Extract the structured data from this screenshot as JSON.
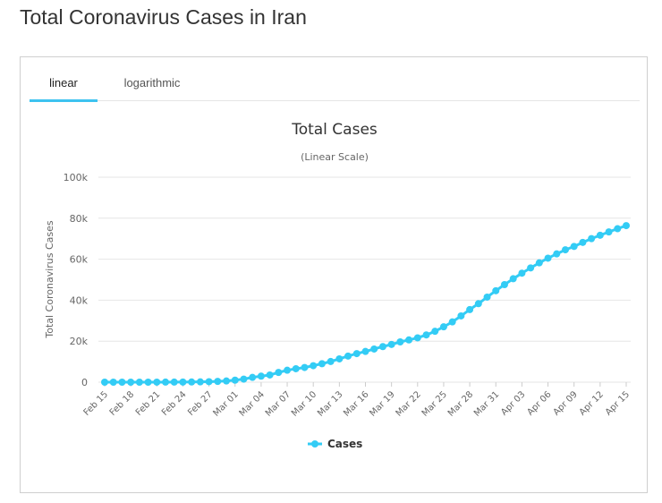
{
  "page": {
    "title": "Total Coronavirus Cases in Iran"
  },
  "tabs": [
    {
      "label": "linear",
      "active": true
    },
    {
      "label": "logarithmic",
      "active": false
    }
  ],
  "colors": {
    "series": "#33ccf5",
    "tab_underline": "#3dc3f0",
    "grid": "#e6e6e6"
  },
  "chart_data": {
    "type": "line",
    "title": "Total Cases",
    "subtitle": "(Linear Scale)",
    "ylabel": "Total Coronavirus Cases",
    "xlabel": "",
    "ylim": [
      0,
      100000
    ],
    "y_ticks": [
      0,
      20000,
      40000,
      60000,
      80000,
      100000
    ],
    "y_tick_labels": [
      "0",
      "20k",
      "40k",
      "60k",
      "80k",
      "100k"
    ],
    "x_tick_labels": [
      "Feb 15",
      "Feb 18",
      "Feb 21",
      "Feb 24",
      "Feb 27",
      "Mar 01",
      "Mar 04",
      "Mar 07",
      "Mar 10",
      "Mar 13",
      "Mar 16",
      "Mar 19",
      "Mar 22",
      "Mar 25",
      "Mar 28",
      "Mar 31",
      "Apr 03",
      "Apr 06",
      "Apr 09",
      "Apr 12",
      "Apr 15"
    ],
    "grid": true,
    "legend": {
      "position": "bottom-center",
      "entries": [
        "Cases"
      ]
    },
    "series": [
      {
        "name": "Cases",
        "x": [
          "Feb 15",
          "Feb 16",
          "Feb 17",
          "Feb 18",
          "Feb 19",
          "Feb 20",
          "Feb 21",
          "Feb 22",
          "Feb 23",
          "Feb 24",
          "Feb 25",
          "Feb 26",
          "Feb 27",
          "Feb 28",
          "Feb 29",
          "Mar 01",
          "Mar 02",
          "Mar 03",
          "Mar 04",
          "Mar 05",
          "Mar 06",
          "Mar 07",
          "Mar 08",
          "Mar 09",
          "Mar 10",
          "Mar 11",
          "Mar 12",
          "Mar 13",
          "Mar 14",
          "Mar 15",
          "Mar 16",
          "Mar 17",
          "Mar 18",
          "Mar 19",
          "Mar 20",
          "Mar 21",
          "Mar 22",
          "Mar 23",
          "Mar 24",
          "Mar 25",
          "Mar 26",
          "Mar 27",
          "Mar 28",
          "Mar 29",
          "Mar 30",
          "Mar 31",
          "Apr 01",
          "Apr 02",
          "Apr 03",
          "Apr 04",
          "Apr 05",
          "Apr 06",
          "Apr 07",
          "Apr 08",
          "Apr 09",
          "Apr 10",
          "Apr 11",
          "Apr 12",
          "Apr 13",
          "Apr 14",
          "Apr 15"
        ],
        "values": [
          0,
          0,
          0,
          0,
          2,
          5,
          18,
          28,
          43,
          61,
          95,
          139,
          245,
          388,
          593,
          978,
          1501,
          2336,
          2922,
          3513,
          4747,
          5823,
          6566,
          7161,
          8042,
          9000,
          10075,
          11364,
          12729,
          13938,
          14991,
          16169,
          17361,
          18407,
          19644,
          20610,
          21638,
          23049,
          24811,
          27017,
          29406,
          32332,
          35408,
          38309,
          41495,
          44605,
          47593,
          50468,
          53183,
          55743,
          58226,
          60500,
          62589,
          64586,
          66220,
          68192,
          70029,
          71686,
          73303,
          74877,
          76389
        ]
      }
    ]
  }
}
